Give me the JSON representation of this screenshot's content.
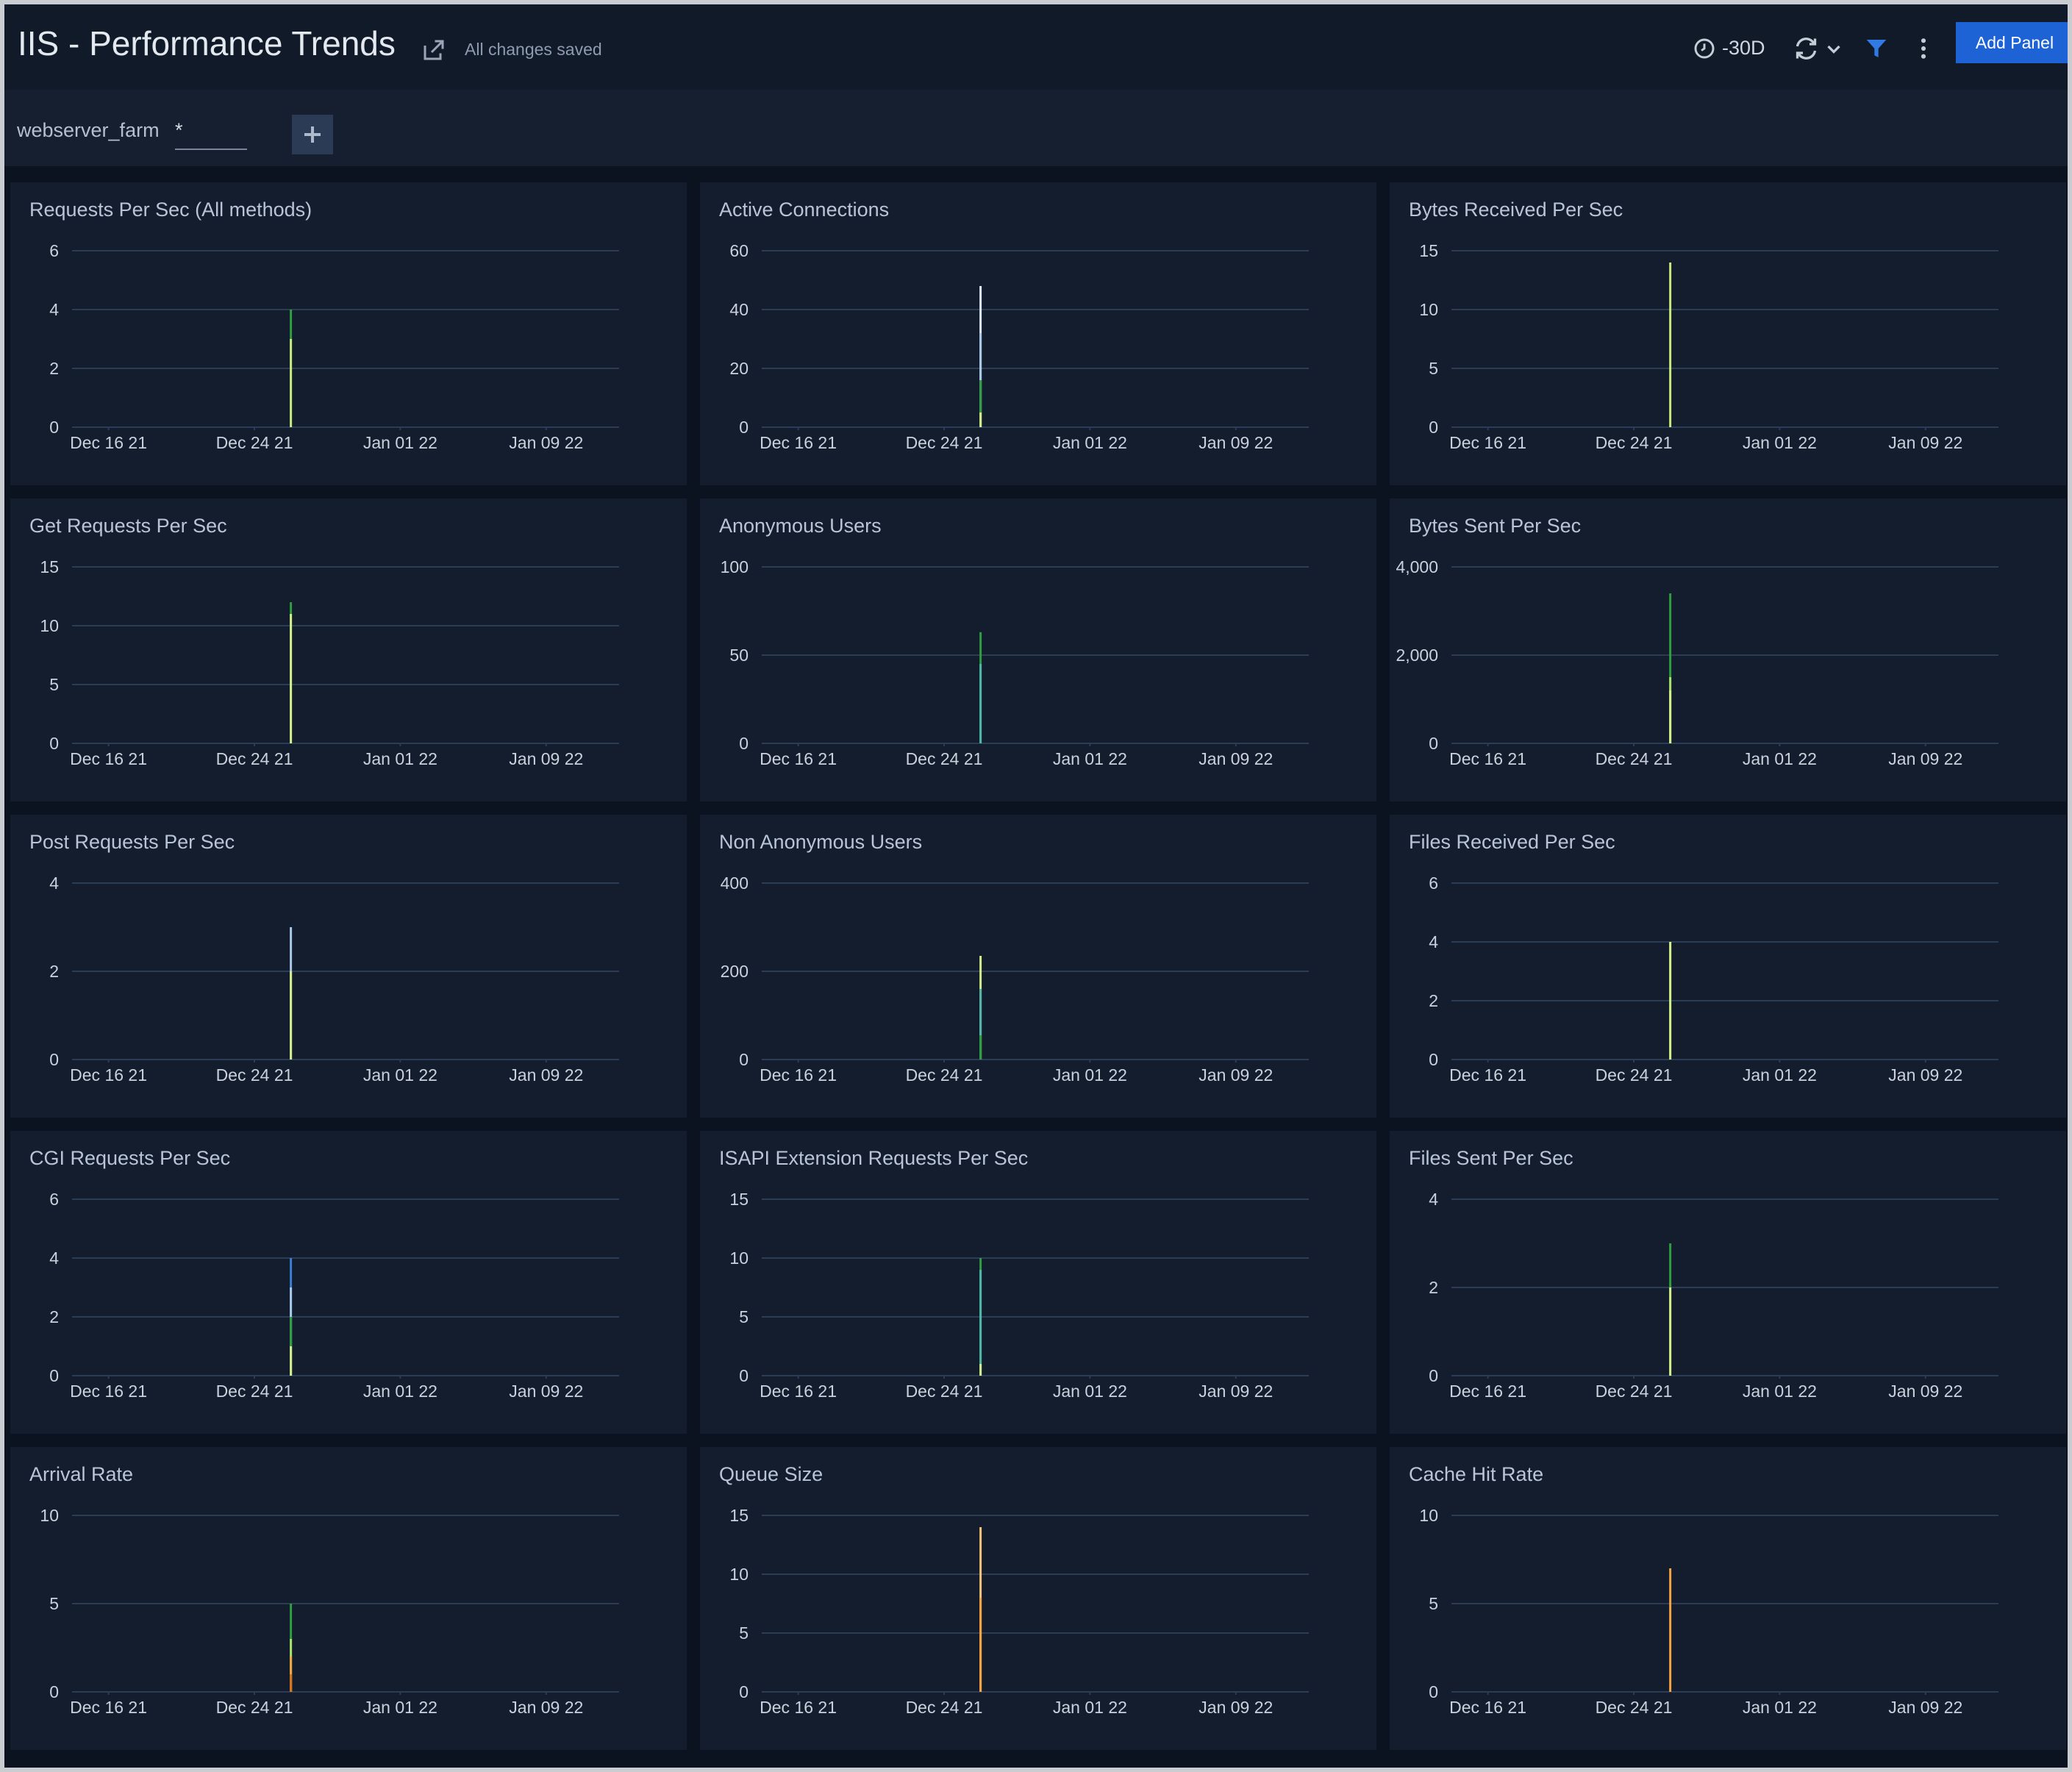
{
  "header": {
    "title": "IIS - Performance Trends",
    "status": "All changes saved",
    "time_range": "-30D",
    "add_panel": "Add Panel"
  },
  "filter": {
    "name": "webserver_farm",
    "value": "*"
  },
  "chart_data": [
    {
      "type": "bar",
      "title": "Requests Per Sec (All methods)",
      "x": [
        "2021-12-26"
      ],
      "xlim": [
        "2021-12-14",
        "2022-01-13"
      ],
      "xticks": [
        {
          "value": "2021-12-16",
          "label": "Dec 16 21"
        },
        {
          "value": "2021-12-24",
          "label": "Dec 24 21"
        },
        {
          "value": "2022-01-01",
          "label": "Jan 01 22"
        },
        {
          "value": "2022-01-09",
          "label": "Jan 09 22"
        }
      ],
      "ylim": [
        0,
        6
      ],
      "yticks": [
        0,
        2,
        4,
        6
      ],
      "grid": true,
      "series": [
        {
          "color": "#2e9e3e",
          "values": [
            4
          ]
        },
        {
          "color": "#c9e77f",
          "values": [
            3
          ]
        }
      ]
    },
    {
      "type": "bar",
      "title": "Active Connections",
      "x": [
        "2021-12-26"
      ],
      "xlim": [
        "2021-12-14",
        "2022-01-13"
      ],
      "xticks": [
        {
          "value": "2021-12-16",
          "label": "Dec 16 21"
        },
        {
          "value": "2021-12-24",
          "label": "Dec 24 21"
        },
        {
          "value": "2022-01-01",
          "label": "Jan 01 22"
        },
        {
          "value": "2022-01-09",
          "label": "Jan 09 22"
        }
      ],
      "ylim": [
        0,
        60
      ],
      "yticks": [
        0,
        20,
        40,
        60
      ],
      "grid": true,
      "series": [
        {
          "color": "#dfe8f5",
          "values": [
            48
          ]
        },
        {
          "color": "#a9c8e8",
          "values": [
            32
          ]
        },
        {
          "color": "#2e9e3e",
          "values": [
            16
          ]
        },
        {
          "color": "#d4ec8a",
          "values": [
            5
          ]
        }
      ]
    },
    {
      "type": "bar",
      "title": "Bytes Received Per Sec",
      "x": [
        "2021-12-26"
      ],
      "xlim": [
        "2021-12-14",
        "2022-01-13"
      ],
      "xticks": [
        {
          "value": "2021-12-16",
          "label": "Dec 16 21"
        },
        {
          "value": "2021-12-24",
          "label": "Dec 24 21"
        },
        {
          "value": "2022-01-01",
          "label": "Jan 01 22"
        },
        {
          "value": "2022-01-09",
          "label": "Jan 09 22"
        }
      ],
      "ylim": [
        0,
        15
      ],
      "yticks": [
        0,
        5,
        10,
        15
      ],
      "grid": true,
      "series": [
        {
          "color": "#c9e77f",
          "values": [
            14
          ]
        }
      ]
    },
    {
      "type": "bar",
      "title": "Get Requests Per Sec",
      "x": [
        "2021-12-26"
      ],
      "xlim": [
        "2021-12-14",
        "2022-01-13"
      ],
      "xticks": [
        {
          "value": "2021-12-16",
          "label": "Dec 16 21"
        },
        {
          "value": "2021-12-24",
          "label": "Dec 24 21"
        },
        {
          "value": "2022-01-01",
          "label": "Jan 01 22"
        },
        {
          "value": "2022-01-09",
          "label": "Jan 09 22"
        }
      ],
      "ylim": [
        0,
        15
      ],
      "yticks": [
        0,
        5,
        10,
        15
      ],
      "grid": true,
      "series": [
        {
          "color": "#2e9e3e",
          "values": [
            12
          ]
        },
        {
          "color": "#d4ec8a",
          "values": [
            11
          ]
        }
      ]
    },
    {
      "type": "bar",
      "title": "Anonymous Users",
      "x": [
        "2021-12-26"
      ],
      "xlim": [
        "2021-12-14",
        "2022-01-13"
      ],
      "xticks": [
        {
          "value": "2021-12-16",
          "label": "Dec 16 21"
        },
        {
          "value": "2021-12-24",
          "label": "Dec 24 21"
        },
        {
          "value": "2022-01-01",
          "label": "Jan 01 22"
        },
        {
          "value": "2022-01-09",
          "label": "Jan 09 22"
        }
      ],
      "ylim": [
        0,
        100
      ],
      "yticks": [
        0,
        50,
        100
      ],
      "grid": true,
      "series": [
        {
          "color": "#2e9e3e",
          "values": [
            63
          ]
        },
        {
          "color": "#4fb6a8",
          "values": [
            45
          ]
        }
      ]
    },
    {
      "type": "bar",
      "title": "Bytes Sent Per Sec",
      "x": [
        "2021-12-26"
      ],
      "xlim": [
        "2021-12-14",
        "2022-01-13"
      ],
      "xticks": [
        {
          "value": "2021-12-16",
          "label": "Dec 16 21"
        },
        {
          "value": "2021-12-24",
          "label": "Dec 24 21"
        },
        {
          "value": "2022-01-01",
          "label": "Jan 01 22"
        },
        {
          "value": "2022-01-09",
          "label": "Jan 09 22"
        }
      ],
      "ylim": [
        0,
        4000
      ],
      "yticks": [
        0,
        {
          "value": 2000,
          "label": "2,000"
        },
        {
          "value": 4000,
          "label": "4,000"
        }
      ],
      "grid": true,
      "series": [
        {
          "color": "#2e9e3e",
          "values": [
            3400
          ]
        },
        {
          "color": "#a8e06a",
          "values": [
            1500
          ]
        },
        {
          "color": "#d4ec8a",
          "values": [
            1200
          ]
        }
      ]
    },
    {
      "type": "bar",
      "title": "Post Requests Per Sec",
      "x": [
        "2021-12-26"
      ],
      "xlim": [
        "2021-12-14",
        "2022-01-13"
      ],
      "xticks": [
        {
          "value": "2021-12-16",
          "label": "Dec 16 21"
        },
        {
          "value": "2021-12-24",
          "label": "Dec 24 21"
        },
        {
          "value": "2022-01-01",
          "label": "Jan 01 22"
        },
        {
          "value": "2022-01-09",
          "label": "Jan 09 22"
        }
      ],
      "ylim": [
        0,
        4
      ],
      "yticks": [
        0,
        2,
        4
      ],
      "grid": true,
      "series": [
        {
          "color": "#a9c8e8",
          "values": [
            3
          ]
        },
        {
          "color": "#d4ec8a",
          "values": [
            2
          ]
        }
      ]
    },
    {
      "type": "bar",
      "title": "Non Anonymous Users",
      "x": [
        "2021-12-26"
      ],
      "xlim": [
        "2021-12-14",
        "2022-01-13"
      ],
      "xticks": [
        {
          "value": "2021-12-16",
          "label": "Dec 16 21"
        },
        {
          "value": "2021-12-24",
          "label": "Dec 24 21"
        },
        {
          "value": "2022-01-01",
          "label": "Jan 01 22"
        },
        {
          "value": "2022-01-09",
          "label": "Jan 09 22"
        }
      ],
      "ylim": [
        0,
        400
      ],
      "yticks": [
        0,
        200,
        400
      ],
      "grid": true,
      "series": [
        {
          "color": "#d4ec8a",
          "values": [
            235
          ]
        },
        {
          "color": "#4fb6a8",
          "values": [
            160
          ]
        },
        {
          "color": "#2e9e3e",
          "values": [
            55
          ]
        }
      ]
    },
    {
      "type": "bar",
      "title": "Files Received Per Sec",
      "x": [
        "2021-12-26"
      ],
      "xlim": [
        "2021-12-14",
        "2022-01-13"
      ],
      "xticks": [
        {
          "value": "2021-12-16",
          "label": "Dec 16 21"
        },
        {
          "value": "2021-12-24",
          "label": "Dec 24 21"
        },
        {
          "value": "2022-01-01",
          "label": "Jan 01 22"
        },
        {
          "value": "2022-01-09",
          "label": "Jan 09 22"
        }
      ],
      "ylim": [
        0,
        6
      ],
      "yticks": [
        0,
        2,
        4,
        6
      ],
      "grid": true,
      "series": [
        {
          "color": "#2e9e3e",
          "values": [
            4
          ]
        },
        {
          "color": "#d4ec8a",
          "values": [
            4
          ]
        }
      ]
    },
    {
      "type": "bar",
      "title": "CGI Requests Per Sec",
      "x": [
        "2021-12-26"
      ],
      "xlim": [
        "2021-12-14",
        "2022-01-13"
      ],
      "xticks": [
        {
          "value": "2021-12-16",
          "label": "Dec 16 21"
        },
        {
          "value": "2021-12-24",
          "label": "Dec 24 21"
        },
        {
          "value": "2022-01-01",
          "label": "Jan 01 22"
        },
        {
          "value": "2022-01-09",
          "label": "Jan 09 22"
        }
      ],
      "ylim": [
        0,
        6
      ],
      "yticks": [
        0,
        2,
        4,
        6
      ],
      "grid": true,
      "series": [
        {
          "color": "#3a7ed0",
          "values": [
            4
          ]
        },
        {
          "color": "#a9c8e8",
          "values": [
            3
          ]
        },
        {
          "color": "#2e9e3e",
          "values": [
            2
          ]
        },
        {
          "color": "#d4ec8a",
          "values": [
            1
          ]
        }
      ]
    },
    {
      "type": "bar",
      "title": "ISAPI Extension Requests Per Sec",
      "x": [
        "2021-12-26"
      ],
      "xlim": [
        "2021-12-14",
        "2022-01-13"
      ],
      "xticks": [
        {
          "value": "2021-12-16",
          "label": "Dec 16 21"
        },
        {
          "value": "2021-12-24",
          "label": "Dec 24 21"
        },
        {
          "value": "2022-01-01",
          "label": "Jan 01 22"
        },
        {
          "value": "2022-01-09",
          "label": "Jan 09 22"
        }
      ],
      "ylim": [
        0,
        15
      ],
      "yticks": [
        0,
        5,
        10,
        15
      ],
      "grid": true,
      "series": [
        {
          "color": "#2e9e3e",
          "values": [
            10
          ]
        },
        {
          "color": "#4fb6a8",
          "values": [
            9
          ]
        },
        {
          "color": "#d4ec8a",
          "values": [
            1
          ]
        }
      ]
    },
    {
      "type": "bar",
      "title": "Files Sent Per Sec",
      "x": [
        "2021-12-26"
      ],
      "xlim": [
        "2021-12-14",
        "2022-01-13"
      ],
      "xticks": [
        {
          "value": "2021-12-16",
          "label": "Dec 16 21"
        },
        {
          "value": "2021-12-24",
          "label": "Dec 24 21"
        },
        {
          "value": "2022-01-01",
          "label": "Jan 01 22"
        },
        {
          "value": "2022-01-09",
          "label": "Jan 09 22"
        }
      ],
      "ylim": [
        0,
        4
      ],
      "yticks": [
        0,
        2,
        4
      ],
      "grid": true,
      "series": [
        {
          "color": "#2e9e3e",
          "values": [
            3
          ]
        },
        {
          "color": "#d4ec8a",
          "values": [
            2
          ]
        }
      ]
    },
    {
      "type": "bar",
      "title": "Arrival Rate",
      "x": [
        "2021-12-26"
      ],
      "xlim": [
        "2021-12-14",
        "2022-01-13"
      ],
      "xticks": [
        {
          "value": "2021-12-16",
          "label": "Dec 16 21"
        },
        {
          "value": "2021-12-24",
          "label": "Dec 24 21"
        },
        {
          "value": "2022-01-01",
          "label": "Jan 01 22"
        },
        {
          "value": "2022-01-09",
          "label": "Jan 09 22"
        }
      ],
      "ylim": [
        0,
        10
      ],
      "yticks": [
        0,
        5,
        10
      ],
      "grid": true,
      "series": [
        {
          "color": "#2e9e3e",
          "values": [
            5
          ]
        },
        {
          "color": "#a8e06a",
          "values": [
            3
          ]
        },
        {
          "color": "#f5a340",
          "values": [
            2
          ]
        },
        {
          "color": "#d9731c",
          "values": [
            1
          ]
        }
      ]
    },
    {
      "type": "bar",
      "title": "Queue Size",
      "x": [
        "2021-12-26"
      ],
      "xlim": [
        "2021-12-14",
        "2022-01-13"
      ],
      "xticks": [
        {
          "value": "2021-12-16",
          "label": "Dec 16 21"
        },
        {
          "value": "2021-12-24",
          "label": "Dec 24 21"
        },
        {
          "value": "2022-01-01",
          "label": "Jan 01 22"
        },
        {
          "value": "2022-01-09",
          "label": "Jan 09 22"
        }
      ],
      "ylim": [
        0,
        15
      ],
      "yticks": [
        0,
        5,
        10,
        15
      ],
      "grid": true,
      "series": [
        {
          "color": "#f7c27a",
          "values": [
            14
          ]
        },
        {
          "color": "#f5a340",
          "values": [
            8
          ]
        }
      ]
    },
    {
      "type": "bar",
      "title": "Cache Hit Rate",
      "x": [
        "2021-12-26"
      ],
      "xlim": [
        "2021-12-14",
        "2022-01-13"
      ],
      "xticks": [
        {
          "value": "2021-12-16",
          "label": "Dec 16 21"
        },
        {
          "value": "2021-12-24",
          "label": "Dec 24 21"
        },
        {
          "value": "2022-01-01",
          "label": "Jan 01 22"
        },
        {
          "value": "2022-01-09",
          "label": "Jan 09 22"
        }
      ],
      "ylim": [
        0,
        10
      ],
      "yticks": [
        0,
        5,
        10
      ],
      "grid": true,
      "series": [
        {
          "color": "#f5a340",
          "values": [
            7
          ]
        }
      ]
    }
  ]
}
